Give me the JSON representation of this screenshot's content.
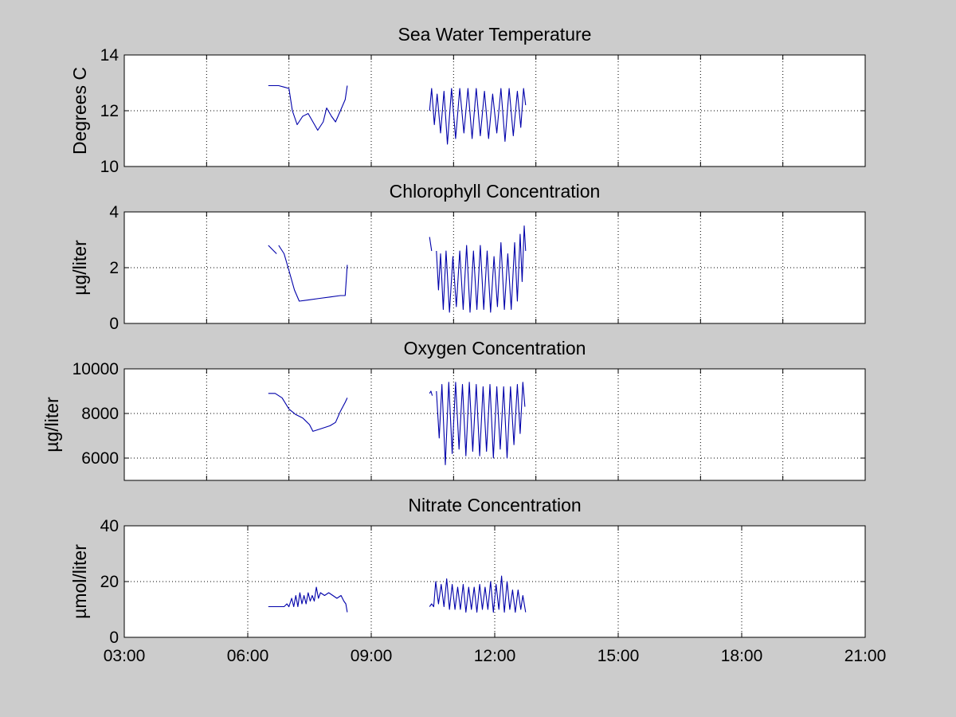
{
  "figure": {
    "background": "#cccccc",
    "axes_background": "#ffffff",
    "line_color": "#0000aa",
    "grid": true
  },
  "chart_data": [
    {
      "type": "line",
      "title": "Sea Water Temperature",
      "xlabel": "",
      "ylabel": "Degrees C",
      "xlim": [
        "03:00",
        "21:00"
      ],
      "ylim": [
        10,
        14
      ],
      "xticks": [
        "03:00",
        "05:00",
        "07:00",
        "09:00",
        "11:00",
        "13:00",
        "15:00",
        "17:00",
        "19:00",
        "21:00"
      ],
      "xticks_labeled": false,
      "yticks": [
        "10",
        "12",
        "14"
      ],
      "series": [
        {
          "values": [
            [
              "06:30",
              12.9
            ],
            [
              "06:45",
              12.9
            ],
            [
              "06:53",
              12.85
            ],
            [
              "07:00",
              12.8
            ],
            [
              "07:05",
              12.0
            ],
            [
              "07:12",
              11.5
            ],
            [
              "07:20",
              11.8
            ],
            [
              "07:28",
              11.9
            ],
            [
              "07:35",
              11.6
            ],
            [
              "07:42",
              11.3
            ],
            [
              "07:50",
              11.6
            ],
            [
              "07:55",
              12.1
            ],
            [
              "08:02",
              11.8
            ],
            [
              "08:08",
              11.6
            ],
            [
              "08:15",
              12.0
            ],
            [
              "08:22",
              12.4
            ],
            [
              "08:25",
              12.9
            ]
          ]
        },
        {
          "values": [
            [
              "10:25",
              12.0
            ],
            [
              "10:28",
              12.8
            ],
            [
              "10:32",
              11.5
            ],
            [
              "10:36",
              12.6
            ],
            [
              "10:41",
              11.2
            ],
            [
              "10:46",
              12.7
            ],
            [
              "10:51",
              10.8
            ],
            [
              "10:57",
              12.8
            ],
            [
              "11:03",
              11.0
            ],
            [
              "11:09",
              12.8
            ],
            [
              "11:15",
              11.2
            ],
            [
              "11:21",
              12.8
            ],
            [
              "11:27",
              11.0
            ],
            [
              "11:33",
              12.8
            ],
            [
              "11:39",
              11.1
            ],
            [
              "11:45",
              12.7
            ],
            [
              "11:51",
              11.0
            ],
            [
              "11:57",
              12.6
            ],
            [
              "12:03",
              11.2
            ],
            [
              "12:09",
              12.8
            ],
            [
              "12:15",
              10.9
            ],
            [
              "12:21",
              12.8
            ],
            [
              "12:27",
              11.1
            ],
            [
              "12:33",
              12.7
            ],
            [
              "12:38",
              11.4
            ],
            [
              "12:42",
              12.8
            ],
            [
              "12:45",
              12.2
            ]
          ]
        }
      ]
    },
    {
      "type": "line",
      "title": "Chlorophyll Concentration",
      "xlabel": "",
      "ylabel": "µg/liter",
      "xlim": [
        "03:00",
        "21:00"
      ],
      "ylim": [
        0,
        4
      ],
      "xticks": [
        "03:00",
        "05:00",
        "07:00",
        "09:00",
        "11:00",
        "13:00",
        "15:00",
        "17:00",
        "19:00",
        "21:00"
      ],
      "xticks_labeled": false,
      "yticks": [
        "0",
        "2",
        "4"
      ],
      "series": [
        {
          "values": [
            [
              "06:30",
              2.8
            ],
            [
              "06:38",
              2.6
            ],
            [
              "06:42",
              2.5
            ]
          ]
        },
        {
          "values": [
            [
              "06:45",
              2.8
            ],
            [
              "06:53",
              2.5
            ],
            [
              "07:00",
              1.9
            ],
            [
              "07:08",
              1.2
            ],
            [
              "07:15",
              0.8
            ],
            [
              "07:30",
              0.85
            ],
            [
              "07:45",
              0.9
            ],
            [
              "08:00",
              0.95
            ],
            [
              "08:15",
              1.0
            ],
            [
              "08:22",
              1.0
            ],
            [
              "08:25",
              2.1
            ]
          ]
        },
        {
          "values": [
            [
              "10:25",
              3.1
            ],
            [
              "10:28",
              2.6
            ]
          ]
        },
        {
          "values": [
            [
              "10:35",
              2.6
            ],
            [
              "10:38",
              1.2
            ],
            [
              "10:41",
              2.5
            ],
            [
              "10:45",
              0.5
            ],
            [
              "10:49",
              2.6
            ],
            [
              "10:54",
              0.4
            ],
            [
              "10:59",
              2.4
            ],
            [
              "11:04",
              0.6
            ],
            [
              "11:09",
              2.6
            ],
            [
              "11:14",
              0.5
            ],
            [
              "11:19",
              2.8
            ],
            [
              "11:24",
              0.4
            ],
            [
              "11:29",
              2.6
            ],
            [
              "11:34",
              0.5
            ],
            [
              "11:39",
              2.8
            ],
            [
              "11:44",
              0.5
            ],
            [
              "11:49",
              2.6
            ],
            [
              "11:54",
              0.4
            ],
            [
              "11:59",
              2.4
            ],
            [
              "12:04",
              0.6
            ],
            [
              "12:09",
              2.9
            ],
            [
              "12:14",
              0.5
            ],
            [
              "12:19",
              2.5
            ],
            [
              "12:24",
              0.5
            ],
            [
              "12:29",
              2.9
            ],
            [
              "12:33",
              0.8
            ],
            [
              "12:37",
              3.2
            ],
            [
              "12:40",
              1.5
            ],
            [
              "12:43",
              3.5
            ],
            [
              "12:45",
              2.6
            ]
          ]
        }
      ]
    },
    {
      "type": "line",
      "title": "Oxygen Concentration",
      "xlabel": "",
      "ylabel": "µg/liter",
      "xlim": [
        "03:00",
        "21:00"
      ],
      "ylim": [
        5000,
        10000
      ],
      "xticks": [
        "03:00",
        "05:00",
        "07:00",
        "09:00",
        "11:00",
        "13:00",
        "15:00",
        "17:00",
        "19:00",
        "21:00"
      ],
      "xticks_labeled": false,
      "yticks": [
        "6000",
        "8000",
        "10000"
      ],
      "series": [
        {
          "values": [
            [
              "06:30",
              8900
            ],
            [
              "06:40",
              8900
            ],
            [
              "06:50",
              8700
            ],
            [
              "07:00",
              8200
            ],
            [
              "07:10",
              7950
            ],
            [
              "07:20",
              7800
            ],
            [
              "07:30",
              7500
            ],
            [
              "07:35",
              7200
            ],
            [
              "07:45",
              7300
            ],
            [
              "08:00",
              7450
            ],
            [
              "08:08",
              7600
            ],
            [
              "08:15",
              8100
            ],
            [
              "08:22",
              8500
            ],
            [
              "08:25",
              8700
            ]
          ]
        },
        {
          "values": [
            [
              "10:25",
              8900
            ],
            [
              "10:27",
              9000
            ],
            [
              "10:29",
              8800
            ]
          ]
        },
        {
          "values": [
            [
              "10:35",
              9000
            ],
            [
              "10:39",
              6900
            ],
            [
              "10:43",
              9300
            ],
            [
              "10:48",
              5700
            ],
            [
              "10:53",
              9400
            ],
            [
              "10:58",
              6200
            ],
            [
              "11:03",
              9400
            ],
            [
              "11:08",
              6400
            ],
            [
              "11:13",
              9300
            ],
            [
              "11:18",
              6100
            ],
            [
              "11:23",
              9400
            ],
            [
              "11:28",
              6300
            ],
            [
              "11:33",
              9300
            ],
            [
              "11:38",
              6100
            ],
            [
              "11:43",
              9200
            ],
            [
              "11:48",
              6300
            ],
            [
              "11:53",
              9300
            ],
            [
              "11:58",
              6000
            ],
            [
              "12:03",
              9200
            ],
            [
              "12:08",
              6400
            ],
            [
              "12:13",
              9200
            ],
            [
              "12:18",
              6000
            ],
            [
              "12:23",
              9200
            ],
            [
              "12:28",
              6600
            ],
            [
              "12:33",
              9300
            ],
            [
              "12:37",
              7100
            ],
            [
              "12:41",
              9400
            ],
            [
              "12:44",
              8300
            ]
          ]
        }
      ]
    },
    {
      "type": "line",
      "title": "Nitrate Concentration",
      "xlabel": "",
      "ylabel": "µmol/liter",
      "xlim": [
        "03:00",
        "21:00"
      ],
      "ylim": [
        0,
        40
      ],
      "xticks": [
        "03:00",
        "06:00",
        "09:00",
        "12:00",
        "15:00",
        "18:00",
        "21:00"
      ],
      "xticks_labeled": true,
      "yticks": [
        "0",
        "20",
        "40"
      ],
      "series": [
        {
          "values": [
            [
              "06:30",
              11
            ],
            [
              "06:45",
              11
            ],
            [
              "06:53",
              11
            ],
            [
              "06:57",
              12
            ],
            [
              "07:00",
              11
            ],
            [
              "07:04",
              14
            ],
            [
              "07:07",
              11
            ],
            [
              "07:10",
              15
            ],
            [
              "07:13",
              11
            ],
            [
              "07:16",
              16
            ],
            [
              "07:19",
              12
            ],
            [
              "07:22",
              15
            ],
            [
              "07:25",
              12
            ],
            [
              "07:28",
              16
            ],
            [
              "07:31",
              13
            ],
            [
              "07:34",
              15
            ],
            [
              "07:37",
              13
            ],
            [
              "07:40",
              18
            ],
            [
              "07:43",
              14
            ],
            [
              "07:46",
              16
            ],
            [
              "07:52",
              15
            ],
            [
              "07:58",
              16
            ],
            [
              "08:04",
              15
            ],
            [
              "08:10",
              14
            ],
            [
              "08:16",
              15
            ],
            [
              "08:20",
              13
            ],
            [
              "08:23",
              12
            ],
            [
              "08:25",
              9
            ]
          ]
        },
        {
          "values": [
            [
              "10:25",
              11
            ],
            [
              "10:28",
              12
            ],
            [
              "10:31",
              11
            ],
            [
              "10:34",
              20
            ],
            [
              "10:38",
              12
            ],
            [
              "10:42",
              19
            ],
            [
              "10:46",
              11
            ],
            [
              "10:50",
              21
            ],
            [
              "10:54",
              10
            ],
            [
              "10:58",
              19
            ],
            [
              "11:02",
              10
            ],
            [
              "11:06",
              18
            ],
            [
              "11:10",
              10
            ],
            [
              "11:14",
              19
            ],
            [
              "11:18",
              9
            ],
            [
              "11:22",
              18
            ],
            [
              "11:26",
              10
            ],
            [
              "11:30",
              18
            ],
            [
              "11:34",
              9
            ],
            [
              "11:38",
              19
            ],
            [
              "11:42",
              10
            ],
            [
              "11:46",
              18
            ],
            [
              "11:50",
              10
            ],
            [
              "11:54",
              20
            ],
            [
              "11:58",
              9
            ],
            [
              "12:02",
              19
            ],
            [
              "12:06",
              10
            ],
            [
              "12:10",
              22
            ],
            [
              "12:14",
              9
            ],
            [
              "12:18",
              20
            ],
            [
              "12:22",
              10
            ],
            [
              "12:26",
              17
            ],
            [
              "12:30",
              9
            ],
            [
              "12:34",
              17
            ],
            [
              "12:38",
              10
            ],
            [
              "12:41",
              15
            ],
            [
              "12:45",
              9
            ]
          ]
        }
      ]
    }
  ]
}
